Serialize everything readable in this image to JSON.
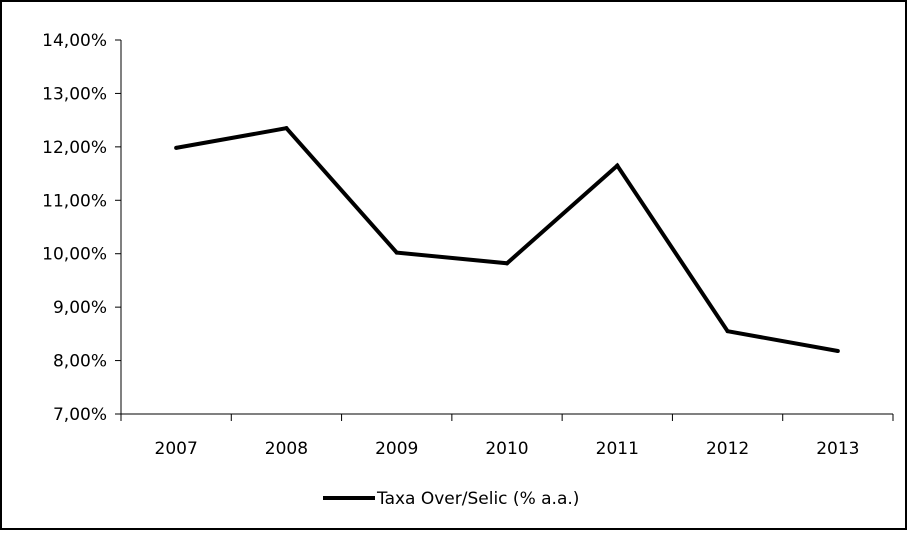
{
  "chart_data": {
    "type": "line",
    "title": "",
    "xlabel": "",
    "ylabel": "",
    "categories": [
      "2007",
      "2008",
      "2009",
      "2010",
      "2011",
      "2012",
      "2013"
    ],
    "series": [
      {
        "name": "Taxa Over/Selic (% a.a.)",
        "values": [
          11.98,
          12.35,
          10.02,
          9.82,
          11.65,
          8.55,
          8.18
        ],
        "color": "#000000"
      }
    ],
    "ylim": [
      7,
      14
    ],
    "y_tick_step": 1,
    "y_tick_labels": [
      "7,00%",
      "8,00%",
      "9,00%",
      "10,00%",
      "11,00%",
      "12,00%",
      "13,00%",
      "14,00%"
    ],
    "grid": false,
    "legend_position": "bottom"
  }
}
